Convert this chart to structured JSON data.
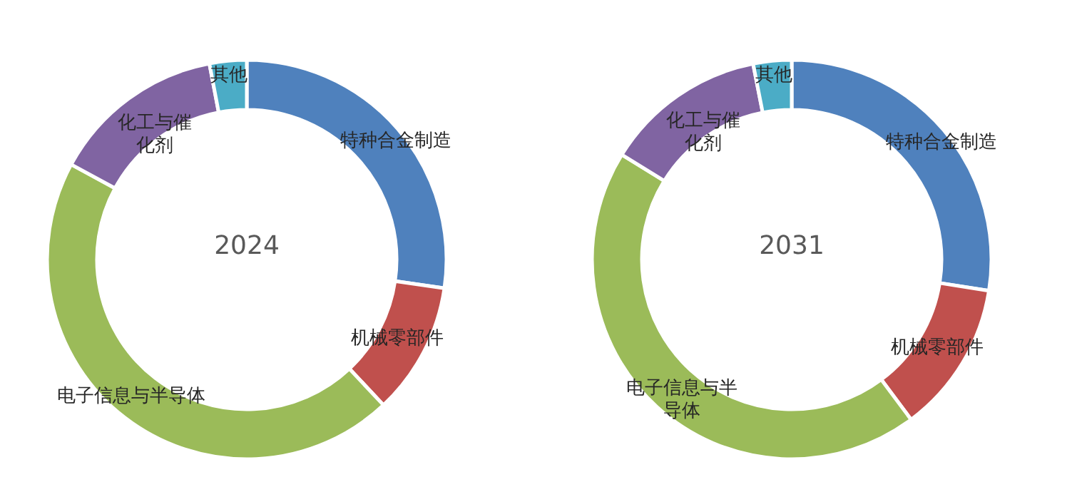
{
  "chart_data": [
    {
      "type": "donut",
      "title": "2024",
      "categories": [
        "特种合金制造",
        "机械零部件",
        "电子信息与半导体",
        "化工与催化剂",
        "其他"
      ],
      "values": [
        27.3,
        10.7,
        44.9,
        14.1,
        3.0
      ],
      "colors": [
        "#4f81bd",
        "#c0504d",
        "#9bbb59",
        "#8064a2",
        "#4bacc6"
      ]
    },
    {
      "type": "donut",
      "title": "2031",
      "categories": [
        "特种合金制造",
        "机械零部件",
        "电子信息与半导体",
        "化工与催化剂",
        "其他"
      ],
      "values": [
        27.5,
        12.3,
        44.0,
        13.1,
        3.1
      ],
      "colors": [
        "#4f81bd",
        "#c0504d",
        "#9bbb59",
        "#8064a2",
        "#4bacc6"
      ]
    }
  ]
}
